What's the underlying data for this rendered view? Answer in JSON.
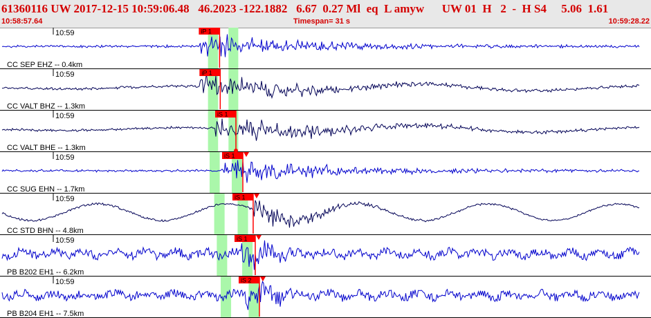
{
  "header": {
    "event_line": "61360116 UW 2017-12-15 10:59:06.48   46.2023 -122.1882   6.67  0.27 Ml  eq  L amyw      UW 01  H   2  -  H S4     5.06  1.61",
    "start_time": "10:58:57.64",
    "timespan": "Timespan=  31 s",
    "end_time": "10:59:28.22"
  },
  "colors": {
    "pick": "#ff0000",
    "window": "#aaf7aa",
    "trace_blue": "#0000cc",
    "trace_dark": "#000055"
  },
  "traces": [
    {
      "label": "CC SEP EHZ -- 0.4km",
      "minute_mark": "10:59",
      "pick_label": "iP 1",
      "pick_time": 0.3373,
      "window_a": [
        0.3195,
        0.335
      ],
      "window_b": [
        0.351,
        0.366
      ],
      "color": "trace_blue",
      "style": "normal",
      "extra_marks": []
    },
    {
      "label": "CC VALT BHZ -- 1.3km",
      "minute_mark": "10:59",
      "pick_label": "iP 1",
      "pick_time": 0.3383,
      "window_a": [
        0.3195,
        0.335
      ],
      "window_b": [
        0.351,
        0.366
      ],
      "color": "trace_dark",
      "style": "normal",
      "extra_marks": []
    },
    {
      "label": "CC VALT BHE -- 1.3km",
      "minute_mark": "10:59",
      "pick_label": "iS 1",
      "pick_time": 0.3624,
      "window_a": [
        0.3195,
        0.335
      ],
      "window_b": [
        0.351,
        0.366
      ],
      "color": "trace_dark",
      "style": "normal",
      "extra_marks": [
        "circle"
      ]
    },
    {
      "label": "CC SUG EHN -- 1.7km",
      "minute_mark": "10:59",
      "pick_label": "iS 1",
      "pick_time": 0.373,
      "window_a": [
        0.322,
        0.3375
      ],
      "window_b": [
        0.356,
        0.372
      ],
      "color": "trace_blue",
      "style": "normal",
      "extra_marks": [
        "triangle"
      ]
    },
    {
      "label": "CC STD BHN -- 4.8km",
      "minute_mark": "10:59",
      "pick_label": "iS 1",
      "pick_time": 0.3889,
      "window_a": [
        0.329,
        0.345
      ],
      "window_b": [
        0.365,
        0.381
      ],
      "color": "trace_dark",
      "style": "longperiod",
      "extra_marks": [
        "triangle"
      ]
    },
    {
      "label": "PB B202 EH1 -- 6.2km",
      "minute_mark": "10:59",
      "pick_label": "iS 1",
      "pick_time": 0.3921,
      "window_a": [
        0.333,
        0.349
      ],
      "window_b": [
        0.372,
        0.388
      ],
      "color": "trace_blue",
      "style": "noisy",
      "extra_marks": [
        "triangle"
      ]
    },
    {
      "label": "PB B204 EH1 -- 7.5km",
      "minute_mark": "10:59",
      "pick_label": "iS 2",
      "pick_time": 0.3985,
      "window_a": [
        0.339,
        0.355
      ],
      "window_b": [
        0.382,
        0.399
      ],
      "color": "trace_blue",
      "style": "noisy",
      "extra_marks": [
        "triangle"
      ]
    }
  ]
}
